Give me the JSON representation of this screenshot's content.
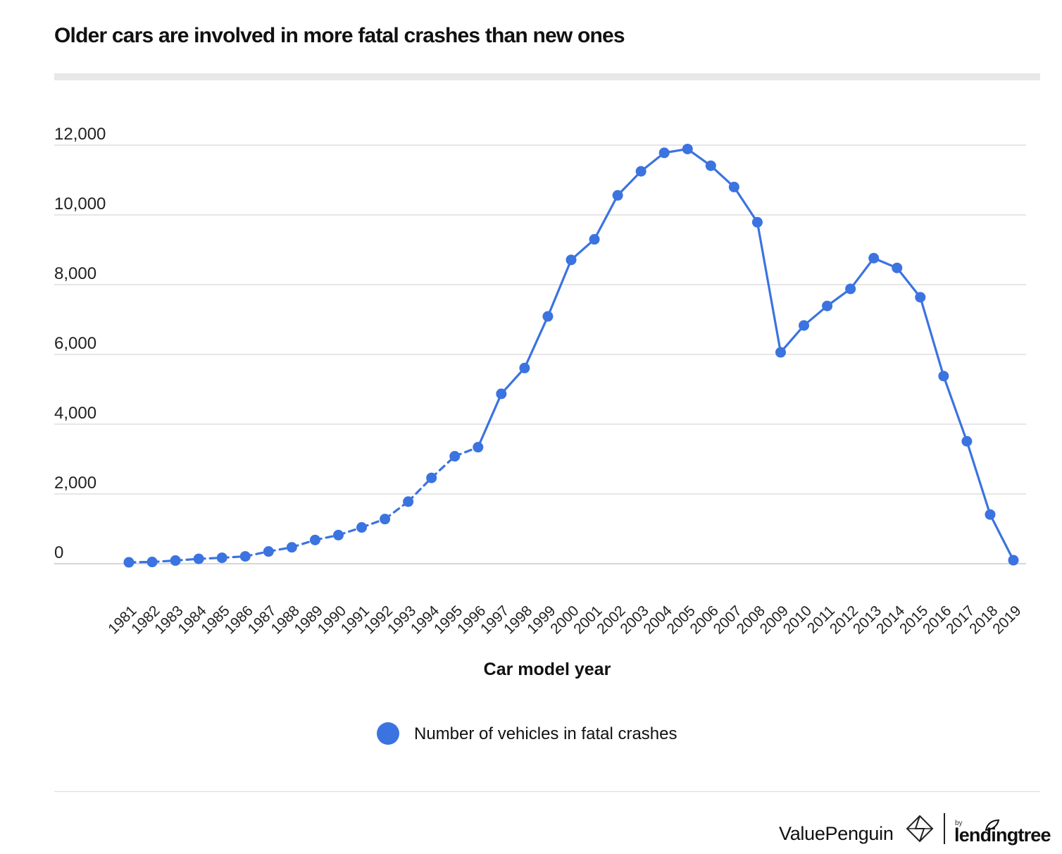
{
  "chart_data": {
    "type": "line",
    "title": "Older cars are involved in more fatal crashes than new ones",
    "xlabel": "Car model year",
    "ylabel": "",
    "ylim": [
      0,
      12000
    ],
    "yticks": [
      0,
      2000,
      4000,
      6000,
      8000,
      10000,
      12000
    ],
    "ytick_labels": [
      "0",
      "2,000",
      "4,000",
      "6,000",
      "8,000",
      "10,000",
      "12,000"
    ],
    "grid": true,
    "legend_placement": "bottom-center",
    "categories": [
      "1981",
      "1982",
      "1983",
      "1984",
      "1985",
      "1986",
      "1987",
      "1988",
      "1989",
      "1990",
      "1991",
      "1992",
      "1993",
      "1994",
      "1995",
      "1996",
      "1997",
      "1998",
      "1999",
      "2000",
      "2001",
      "2002",
      "2003",
      "2004",
      "2005",
      "2006",
      "2007",
      "2008",
      "2009",
      "2010",
      "2011",
      "2012",
      "2013",
      "2014",
      "2015",
      "2016",
      "2017",
      "2018",
      "2019"
    ],
    "series": [
      {
        "name": "Number of vehicles in fatal crashes",
        "color": "#3b73e0",
        "values": [
          40,
          50,
          90,
          140,
          170,
          210,
          350,
          470,
          680,
          820,
          1040,
          1280,
          1780,
          2460,
          3080,
          3340,
          4870,
          5610,
          7090,
          8710,
          9300,
          10560,
          11250,
          11780,
          11890,
          11410,
          10800,
          9790,
          6060,
          6830,
          7390,
          7880,
          8760,
          8480,
          7640,
          5380,
          3510,
          1410,
          100
        ],
        "dashed_until": "1996"
      }
    ]
  },
  "footer": {
    "brand_primary": "ValuePenguin",
    "brand_by": "by",
    "brand_secondary": "lendingtree",
    "icon_primary": "valuepenguin-logo-icon",
    "icon_secondary": "lendingtree-leaf-icon"
  }
}
